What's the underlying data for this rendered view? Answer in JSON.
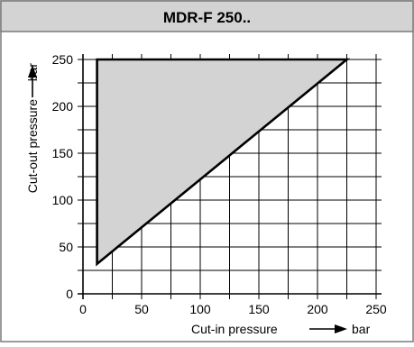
{
  "chart_data": {
    "type": "area",
    "title": "MDR-F 250..",
    "xlabel": "Cut-in pressure",
    "xunit": "bar",
    "ylabel": "Cut-out pressure",
    "yunit": "bar",
    "xlim": [
      0,
      250
    ],
    "ylim": [
      0,
      250
    ],
    "xticks": [
      "0",
      "50",
      "100",
      "150",
      "200",
      "250"
    ],
    "yticks": [
      "0",
      "50",
      "100",
      "150",
      "200",
      "250"
    ],
    "grid": true,
    "region": {
      "fill_color": "#d3d3d3",
      "vertices": [
        {
          "x": 12,
          "y": 32
        },
        {
          "x": 12,
          "y": 250
        },
        {
          "x": 225,
          "y": 250
        }
      ]
    }
  },
  "colors": {
    "header_bg": "#d3d3d3",
    "frame": "#7a7a7a",
    "line": "#000000"
  }
}
